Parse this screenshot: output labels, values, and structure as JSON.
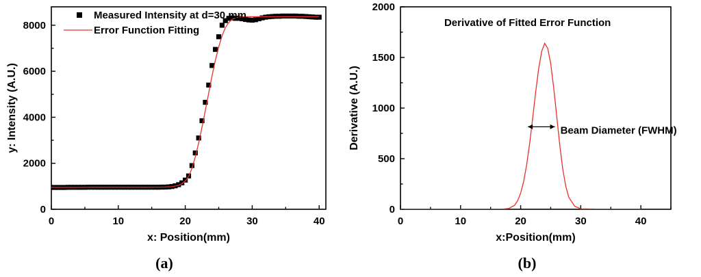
{
  "chart_data": [
    {
      "panel_label": "(a)",
      "type": "scatter",
      "title": "",
      "xlabel": "x: Position(mm)",
      "ylabel": "y: Intensity (A.U.)",
      "xlim": [
        0,
        41
      ],
      "ylim": [
        0,
        8800
      ],
      "xticks": [
        0,
        10,
        20,
        30,
        40
      ],
      "yticks": [
        0,
        2000,
        4000,
        6000,
        8000
      ],
      "legend_position": "top-left",
      "series": [
        {
          "name": "Measured Intensity at d=30 mm",
          "kind": "markers",
          "color": "#000000",
          "x": [
            0,
            0.5,
            1,
            1.5,
            2,
            2.5,
            3,
            3.5,
            4,
            4.5,
            5,
            5.5,
            6,
            6.5,
            7,
            7.5,
            8,
            8.5,
            9,
            9.5,
            10,
            10.5,
            11,
            11.5,
            12,
            12.5,
            13,
            13.5,
            14,
            14.5,
            15,
            15.5,
            16,
            16.5,
            17,
            17.5,
            18,
            18.5,
            19,
            19.5,
            20,
            20.5,
            21,
            21.5,
            22,
            22.5,
            23,
            23.5,
            24,
            24.5,
            25,
            25.5,
            26,
            26.5,
            27,
            27.5,
            28,
            28.5,
            29,
            29.5,
            30,
            30.5,
            31,
            31.5,
            32,
            32.5,
            33,
            33.5,
            34,
            34.5,
            35,
            35.5,
            36,
            36.5,
            37,
            37.5,
            38,
            38.5,
            39,
            39.5,
            40
          ],
          "y": [
            950,
            950,
            950,
            950,
            950,
            955,
            955,
            955,
            955,
            955,
            955,
            960,
            960,
            960,
            960,
            960,
            960,
            960,
            960,
            960,
            960,
            960,
            960,
            960,
            960,
            960,
            960,
            960,
            960,
            960,
            960,
            960,
            960,
            965,
            965,
            975,
            990,
            1020,
            1070,
            1150,
            1270,
            1450,
            1900,
            2450,
            3100,
            3850,
            4650,
            5400,
            6250,
            6950,
            7500,
            8000,
            8200,
            8300,
            8320,
            8300,
            8300,
            8280,
            8250,
            8230,
            8220,
            8240,
            8280,
            8320,
            8350,
            8370,
            8380,
            8390,
            8390,
            8400,
            8400,
            8400,
            8400,
            8400,
            8390,
            8390,
            8380,
            8370,
            8360,
            8350,
            8350
          ]
        },
        {
          "name": "Error Function Fitting",
          "kind": "line",
          "color": "#e8302a",
          "x": [
            0,
            2,
            4,
            6,
            8,
            10,
            12,
            14,
            16,
            17,
            18,
            19,
            19.5,
            20,
            20.5,
            21,
            21.5,
            22,
            22.5,
            23,
            23.5,
            24,
            24.5,
            25,
            25.5,
            26,
            26.5,
            27,
            28,
            29,
            30,
            32,
            34,
            36,
            38,
            40
          ],
          "y": [
            955,
            955,
            955,
            960,
            960,
            960,
            960,
            960,
            962,
            968,
            985,
            1040,
            1110,
            1230,
            1420,
            1780,
            2280,
            2880,
            3560,
            4300,
            5050,
            5800,
            6480,
            7060,
            7540,
            7900,
            8120,
            8260,
            8360,
            8370,
            8370,
            8370,
            8370,
            8370,
            8370,
            8370
          ]
        }
      ]
    },
    {
      "panel_label": "(b)",
      "type": "line",
      "title": "Derivative of Fitted Error Function",
      "xlabel": "x:Position(mm)",
      "ylabel": "Derivative (A.U.)",
      "xlim": [
        0,
        45
      ],
      "ylim": [
        0,
        2000
      ],
      "xticks": [
        0,
        10,
        20,
        30,
        40
      ],
      "yticks": [
        0,
        500,
        1000,
        1500,
        2000
      ],
      "annotation": {
        "text": "Beam Diameter (FWHM)",
        "arrow_x": [
          21.2,
          25.7
        ],
        "arrow_y": 815
      },
      "series": [
        {
          "name": "",
          "color": "#e8302a",
          "x": [
            0,
            5,
            10,
            15,
            17,
            18,
            19,
            19.5,
            20,
            20.5,
            21,
            21.5,
            22,
            22.5,
            23,
            23.5,
            24,
            24.5,
            25,
            25.5,
            26,
            26.5,
            27,
            27.5,
            28,
            29,
            30,
            35,
            40
          ],
          "y": [
            0,
            0,
            0,
            0,
            2,
            8,
            40,
            85,
            160,
            275,
            440,
            650,
            900,
            1160,
            1390,
            1560,
            1640,
            1590,
            1440,
            1200,
            920,
            640,
            400,
            230,
            120,
            30,
            5,
            0,
            0
          ]
        }
      ]
    }
  ]
}
